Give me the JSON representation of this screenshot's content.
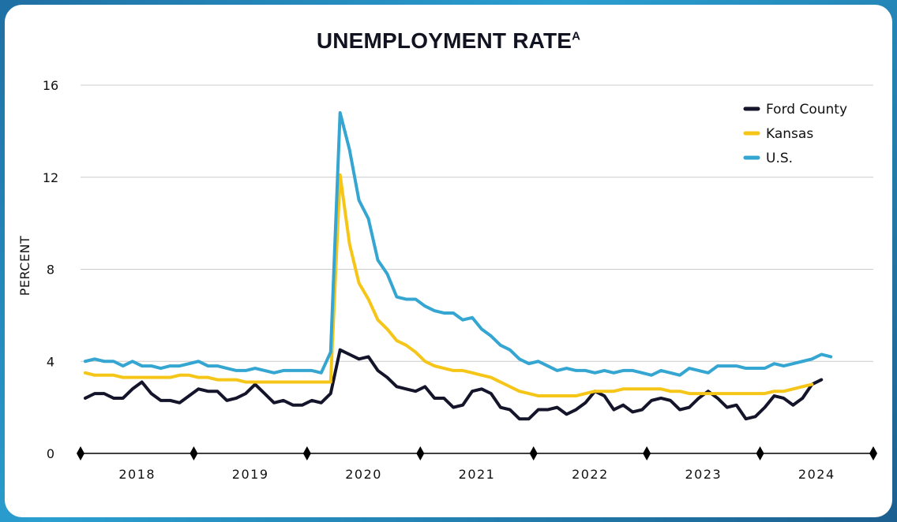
{
  "colors": {
    "ford": "#14152b",
    "kansas": "#f5c518",
    "us": "#35a6d1",
    "grid": "#cccccc",
    "axis": "#000000"
  },
  "chart_data": {
    "type": "line",
    "title": "UNEMPLOYMENT RATE",
    "title_superscript": "A",
    "xlabel": "",
    "ylabel": "PERCENT",
    "ylim": [
      0,
      16
    ],
    "yticks": [
      0,
      4,
      8,
      12,
      16
    ],
    "x_start": "2018-01",
    "x_end": "2024-12",
    "year_labels": [
      "2018",
      "2019",
      "2020",
      "2021",
      "2022",
      "2023",
      "2024"
    ],
    "grid": "horizontal",
    "legend_position": "top-right",
    "series": [
      {
        "name": "Ford County",
        "color_key": "ford",
        "values": [
          2.4,
          2.6,
          2.6,
          2.4,
          2.4,
          2.8,
          3.1,
          2.6,
          2.3,
          2.3,
          2.2,
          2.5,
          2.8,
          2.7,
          2.7,
          2.3,
          2.4,
          2.6,
          3.0,
          2.6,
          2.2,
          2.3,
          2.1,
          2.1,
          2.3,
          2.2,
          2.6,
          4.5,
          4.3,
          4.1,
          4.2,
          3.6,
          3.3,
          2.9,
          2.8,
          2.7,
          2.9,
          2.4,
          2.4,
          2.0,
          2.1,
          2.7,
          2.8,
          2.6,
          2.0,
          1.9,
          1.5,
          1.5,
          1.9,
          1.9,
          2.0,
          1.7,
          1.9,
          2.2,
          2.7,
          2.5,
          1.9,
          2.1,
          1.8,
          1.9,
          2.3,
          2.4,
          2.3,
          1.9,
          2.0,
          2.4,
          2.7,
          2.4,
          2.0,
          2.1,
          1.5,
          1.6,
          2.0,
          2.5,
          2.4,
          2.1,
          2.4,
          3.0,
          3.2
        ]
      },
      {
        "name": "Kansas",
        "color_key": "kansas",
        "values": [
          3.5,
          3.4,
          3.4,
          3.4,
          3.3,
          3.3,
          3.3,
          3.3,
          3.3,
          3.3,
          3.4,
          3.4,
          3.3,
          3.3,
          3.2,
          3.2,
          3.2,
          3.1,
          3.1,
          3.1,
          3.1,
          3.1,
          3.1,
          3.1,
          3.1,
          3.1,
          3.1,
          12.1,
          9.1,
          7.4,
          6.7,
          5.8,
          5.4,
          4.9,
          4.7,
          4.4,
          4.0,
          3.8,
          3.7,
          3.6,
          3.6,
          3.5,
          3.4,
          3.3,
          3.1,
          2.9,
          2.7,
          2.6,
          2.5,
          2.5,
          2.5,
          2.5,
          2.5,
          2.6,
          2.7,
          2.7,
          2.7,
          2.8,
          2.8,
          2.8,
          2.8,
          2.8,
          2.7,
          2.7,
          2.6,
          2.6,
          2.6,
          2.6,
          2.6,
          2.6,
          2.6,
          2.6,
          2.6,
          2.7,
          2.7,
          2.8,
          2.9,
          3.0
        ]
      },
      {
        "name": "U.S.",
        "color_key": "us",
        "values": [
          4.0,
          4.1,
          4.0,
          4.0,
          3.8,
          4.0,
          3.8,
          3.8,
          3.7,
          3.8,
          3.8,
          3.9,
          4.0,
          3.8,
          3.8,
          3.7,
          3.6,
          3.6,
          3.7,
          3.6,
          3.5,
          3.6,
          3.6,
          3.6,
          3.6,
          3.5,
          4.4,
          14.8,
          13.2,
          11.0,
          10.2,
          8.4,
          7.8,
          6.8,
          6.7,
          6.7,
          6.4,
          6.2,
          6.1,
          6.1,
          5.8,
          5.9,
          5.4,
          5.1,
          4.7,
          4.5,
          4.1,
          3.9,
          4.0,
          3.8,
          3.6,
          3.7,
          3.6,
          3.6,
          3.5,
          3.6,
          3.5,
          3.6,
          3.6,
          3.5,
          3.4,
          3.6,
          3.5,
          3.4,
          3.7,
          3.6,
          3.5,
          3.8,
          3.8,
          3.8,
          3.7,
          3.7,
          3.7,
          3.9,
          3.8,
          3.9,
          4.0,
          4.1,
          4.3,
          4.2
        ]
      }
    ]
  }
}
